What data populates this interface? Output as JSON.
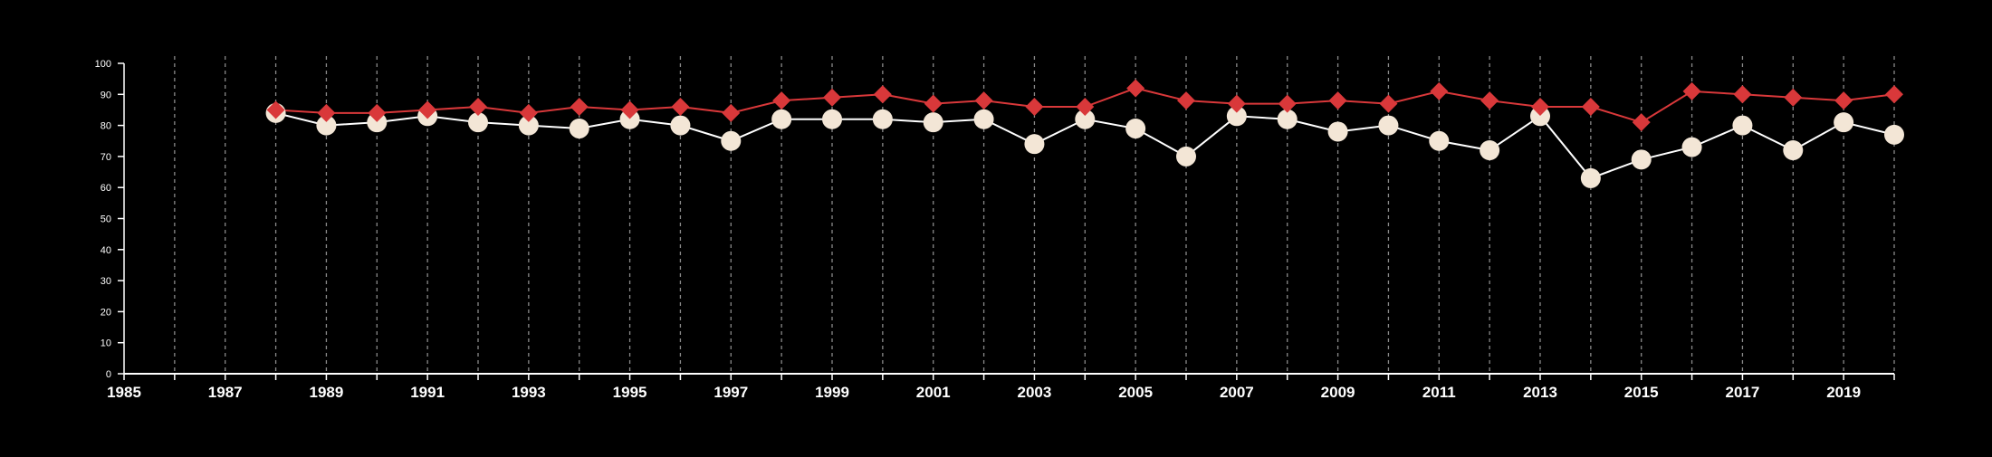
{
  "chart_data": {
    "type": "line",
    "title": "",
    "xlabel": "",
    "ylabel": "",
    "xlim": [
      1985,
      2020
    ],
    "ylim": [
      0,
      100
    ],
    "x_ticks": [
      1985,
      1987,
      1989,
      1991,
      1993,
      1995,
      1997,
      1999,
      2001,
      2003,
      2005,
      2007,
      2009,
      2011,
      2013,
      2015,
      2017,
      2019
    ],
    "y_ticks": [
      0,
      10,
      20,
      30,
      40,
      50,
      60,
      70,
      80,
      90,
      100
    ],
    "grid": "vertical dashed lines at every year",
    "legend": "none",
    "x": [
      1988,
      1989,
      1990,
      1991,
      1992,
      1993,
      1994,
      1995,
      1996,
      1997,
      1998,
      1999,
      2000,
      2001,
      2002,
      2003,
      2004,
      2005,
      2006,
      2007,
      2008,
      2009,
      2010,
      2011,
      2012,
      2013,
      2014,
      2015,
      2016,
      2017,
      2018,
      2019,
      2020
    ],
    "series": [
      {
        "marker": "diamond",
        "color": "#d9383a",
        "values": [
          85,
          84,
          84,
          85,
          86,
          84,
          86,
          85,
          86,
          84,
          88,
          89,
          90,
          87,
          88,
          86,
          86,
          92,
          88,
          87,
          87,
          88,
          87,
          91,
          88,
          86,
          86,
          81,
          91,
          90,
          89,
          88,
          90
        ]
      },
      {
        "marker": "circle",
        "color": "#f3e6d6",
        "values": [
          84,
          80,
          81,
          83,
          81,
          80,
          79,
          82,
          80,
          75,
          82,
          82,
          82,
          81,
          82,
          74,
          82,
          79,
          70,
          83,
          82,
          78,
          80,
          75,
          72,
          83,
          63,
          69,
          73,
          80,
          72,
          81,
          77
        ]
      }
    ]
  },
  "colors": {
    "background": "#000000",
    "axis": "#ffffff",
    "grid": "#8a8a8a",
    "line": "#ffffff"
  }
}
